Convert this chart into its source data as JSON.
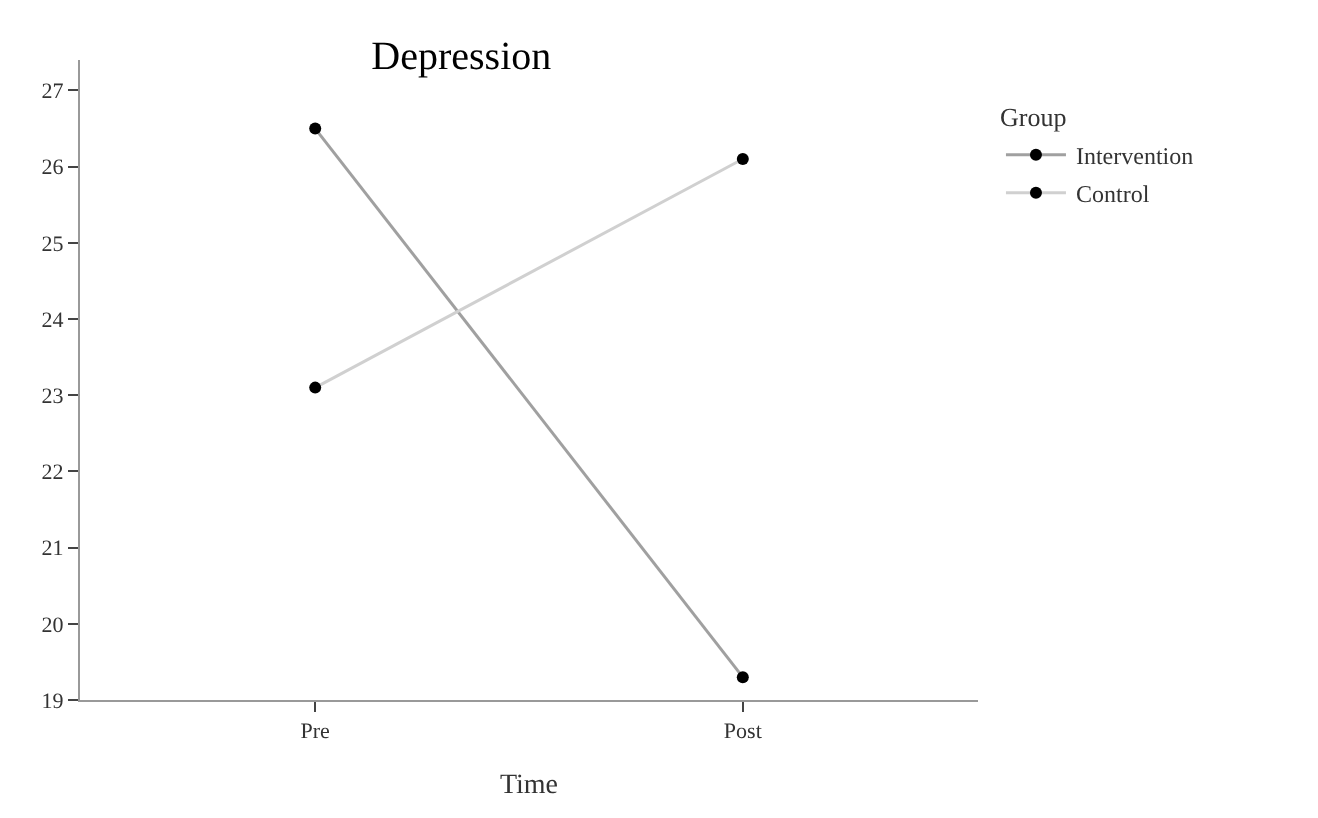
{
  "chart_data": {
    "type": "line",
    "title": "Depression",
    "xlabel": "Time",
    "legend_title": "Group",
    "categories": [
      "Pre",
      "Post"
    ],
    "series": [
      {
        "name": "Intervention",
        "color": "#a0a0a0",
        "values": [
          26.5,
          19.3
        ]
      },
      {
        "name": "Control",
        "color": "#d0d0d0",
        "values": [
          23.1,
          26.1
        ]
      }
    ],
    "ylim": [
      19,
      27.4
    ],
    "yticks": [
      19,
      20,
      21,
      22,
      23,
      24,
      25,
      26,
      27
    ],
    "grid": false,
    "legend": "top right",
    "marker": "circle",
    "line_style": "solid"
  }
}
